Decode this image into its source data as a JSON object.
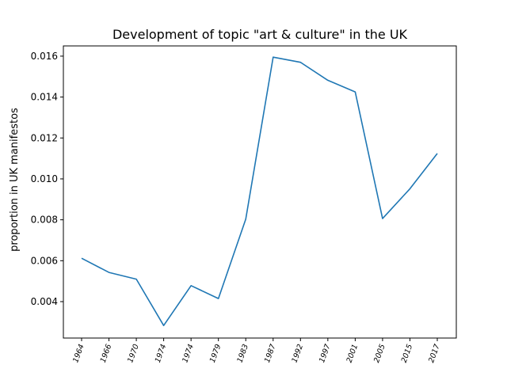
{
  "chart_data": {
    "type": "line",
    "title": "Development of topic \"art & culture\" in the UK",
    "xlabel": "",
    "ylabel": "proportion in UK manifestos",
    "categories": [
      "1964",
      "1966",
      "1970",
      "1974",
      "1974",
      "1979",
      "1983",
      "1987",
      "1992",
      "1997",
      "2001",
      "2005",
      "2015",
      "2017"
    ],
    "series": [
      {
        "name": "",
        "color": "#1f77b4",
        "values": [
          0.00612,
          0.00543,
          0.0051,
          0.00283,
          0.00478,
          0.00415,
          0.00803,
          0.01595,
          0.0157,
          0.01482,
          0.01425,
          0.00806,
          0.00952,
          0.01124
        ]
      }
    ],
    "ylim": [
      0.00222,
      0.0165
    ],
    "yticks": [
      0.004,
      0.006,
      0.008,
      0.01,
      0.012,
      0.014,
      0.016
    ],
    "ytick_labels": [
      "0.004",
      "0.006",
      "0.008",
      "0.010",
      "0.012",
      "0.014",
      "0.016"
    ],
    "grid": false,
    "legend": "none"
  }
}
